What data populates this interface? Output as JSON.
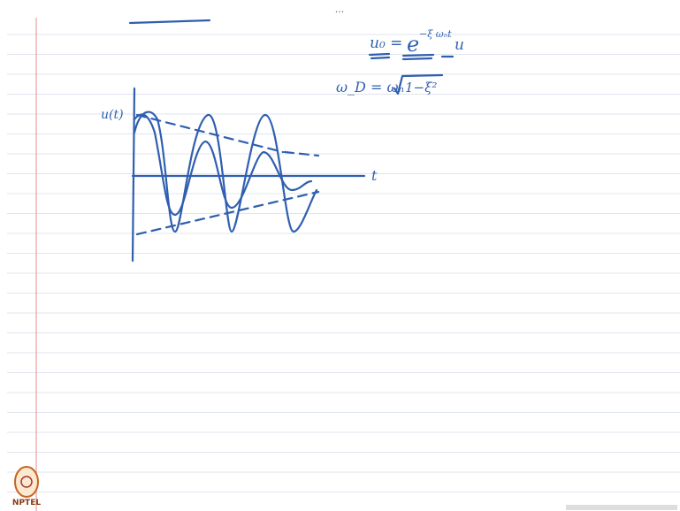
{
  "window": {
    "menu": "..."
  },
  "notes": {
    "axis_y_label": "u(t)",
    "axis_x_label": "t",
    "equation_1": {
      "lhs": "u₀ =",
      "base": "e",
      "exponent": "−ξ ωₙt",
      "rest": "u"
    },
    "equation_2": {
      "lhs": "ω_D = ωₙ",
      "radical": "1−ξ²"
    }
  },
  "logo": {
    "text": "NPTEL"
  }
}
